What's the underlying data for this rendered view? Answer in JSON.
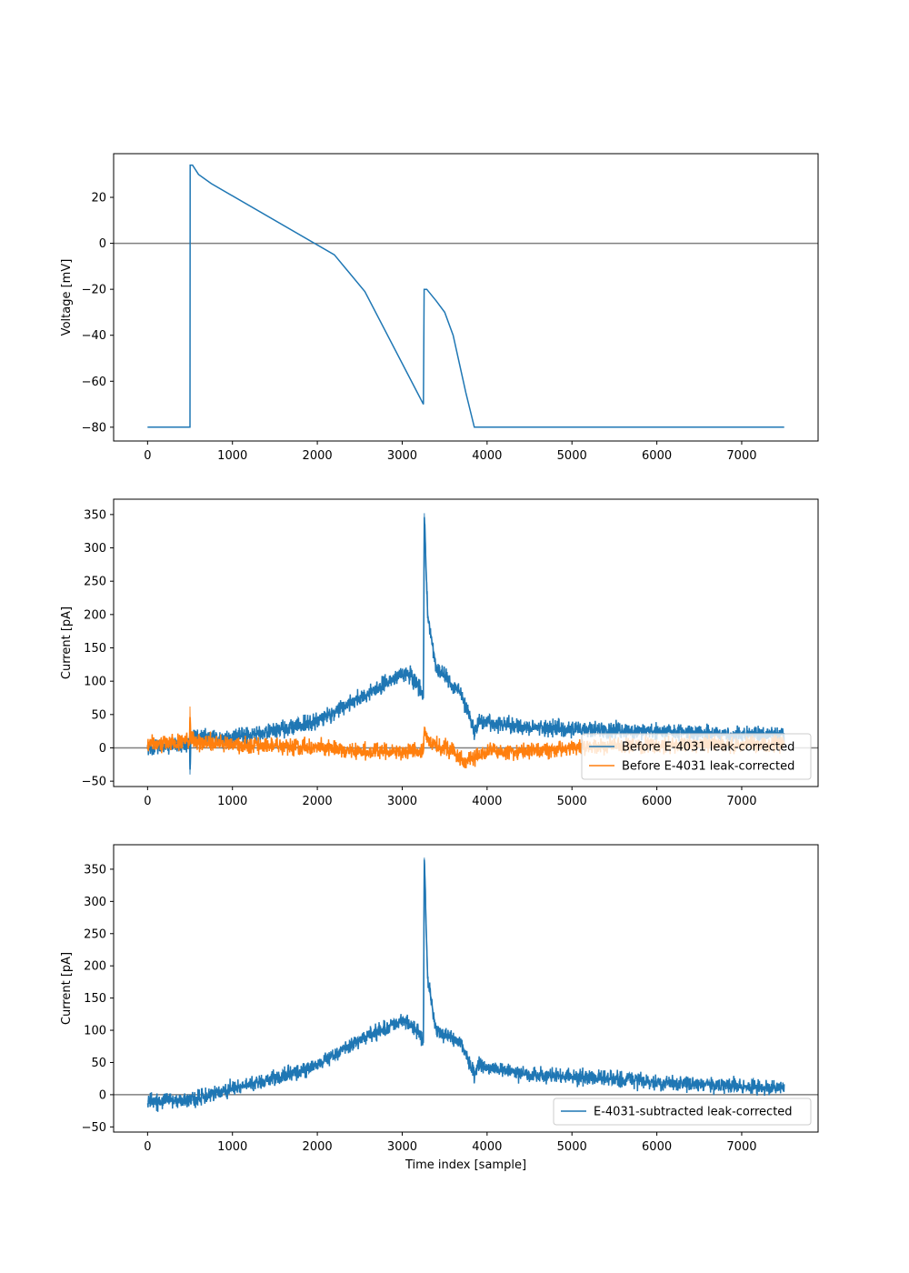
{
  "chart_data": [
    {
      "type": "line",
      "title": "",
      "xlabel": "",
      "ylabel": "Voltage [mV]",
      "xlim": [
        -400,
        7900
      ],
      "ylim": [
        -86,
        39
      ],
      "xticks": [
        0,
        1000,
        2000,
        3000,
        4000,
        5000,
        6000,
        7000
      ],
      "yticks": [
        -80,
        -60,
        -40,
        -20,
        0,
        20
      ],
      "hline": 0,
      "legend": null,
      "series": [
        {
          "name": "",
          "color": "#1f77b4",
          "points": [
            [
              0,
              -80
            ],
            [
              500,
              -80
            ],
            [
              502,
              34
            ],
            [
              530,
              34
            ],
            [
              600,
              30
            ],
            [
              750,
              26
            ],
            [
              2200,
              -5
            ],
            [
              2560,
              -21
            ],
            [
              3250,
              -70
            ],
            [
              3258,
              -20
            ],
            [
              3290,
              -20
            ],
            [
              3400,
              -25
            ],
            [
              3500,
              -30
            ],
            [
              3600,
              -40
            ],
            [
              3750,
              -65
            ],
            [
              3850,
              -80
            ],
            [
              7500,
              -80
            ]
          ]
        }
      ]
    },
    {
      "type": "line",
      "title": "",
      "xlabel": "",
      "ylabel": "Current [pA]",
      "xlim": [
        -400,
        7900
      ],
      "ylim": [
        -58,
        373
      ],
      "xticks": [
        0,
        1000,
        2000,
        3000,
        4000,
        5000,
        6000,
        7000
      ],
      "yticks": [
        -50,
        0,
        50,
        100,
        150,
        200,
        250,
        300,
        350
      ],
      "hline": 0,
      "legend": "lower-right",
      "series": [
        {
          "name": "Before E-4031 leak-corrected",
          "color": "#1f77b4",
          "noise": 6,
          "points": [
            [
              0,
              0
            ],
            [
              300,
              5
            ],
            [
              495,
              5
            ],
            [
              500,
              -40
            ],
            [
              510,
              15
            ],
            [
              1000,
              15
            ],
            [
              1500,
              25
            ],
            [
              2000,
              40
            ],
            [
              2500,
              75
            ],
            [
              3000,
              110
            ],
            [
              3100,
              110
            ],
            [
              3250,
              80
            ],
            [
              3260,
              352
            ],
            [
              3300,
              200
            ],
            [
              3400,
              120
            ],
            [
              3700,
              80
            ],
            [
              3850,
              25
            ],
            [
              3900,
              40
            ],
            [
              4500,
              30
            ],
            [
              5000,
              28
            ],
            [
              6000,
              25
            ],
            [
              7000,
              20
            ],
            [
              7500,
              20
            ]
          ]
        },
        {
          "name": "Before E-4031 leak-corrected",
          "color": "#ff7f0e",
          "noise": 6,
          "points": [
            [
              0,
              5
            ],
            [
              495,
              10
            ],
            [
              500,
              62
            ],
            [
              510,
              10
            ],
            [
              1000,
              5
            ],
            [
              2000,
              0
            ],
            [
              2500,
              -5
            ],
            [
              3250,
              -5
            ],
            [
              3260,
              32
            ],
            [
              3300,
              10
            ],
            [
              3500,
              0
            ],
            [
              3750,
              -20
            ],
            [
              4000,
              -5
            ],
            [
              4500,
              -5
            ],
            [
              5000,
              0
            ],
            [
              6000,
              5
            ],
            [
              7000,
              5
            ],
            [
              7500,
              5
            ]
          ]
        }
      ]
    },
    {
      "type": "line",
      "title": "",
      "xlabel": "Time index [sample]",
      "ylabel": "Current [pA]",
      "xlim": [
        -400,
        7900
      ],
      "ylim": [
        -58,
        388
      ],
      "xticks": [
        0,
        1000,
        2000,
        3000,
        4000,
        5000,
        6000,
        7000
      ],
      "yticks": [
        -50,
        0,
        50,
        100,
        150,
        200,
        250,
        300,
        350
      ],
      "hline": 0,
      "legend": "lower-right",
      "series": [
        {
          "name": "E-4031-subtracted leak-corrected",
          "color": "#1f77b4",
          "noise": 6,
          "points": [
            [
              0,
              -10
            ],
            [
              500,
              -10
            ],
            [
              1000,
              10
            ],
            [
              1500,
              25
            ],
            [
              2000,
              45
            ],
            [
              2500,
              85
            ],
            [
              3000,
              115
            ],
            [
              3100,
              110
            ],
            [
              3250,
              85
            ],
            [
              3260,
              368
            ],
            [
              3300,
              180
            ],
            [
              3400,
              100
            ],
            [
              3700,
              80
            ],
            [
              3850,
              30
            ],
            [
              3900,
              45
            ],
            [
              4500,
              30
            ],
            [
              5000,
              28
            ],
            [
              6000,
              20
            ],
            [
              7000,
              12
            ],
            [
              7500,
              10
            ]
          ]
        }
      ]
    }
  ]
}
